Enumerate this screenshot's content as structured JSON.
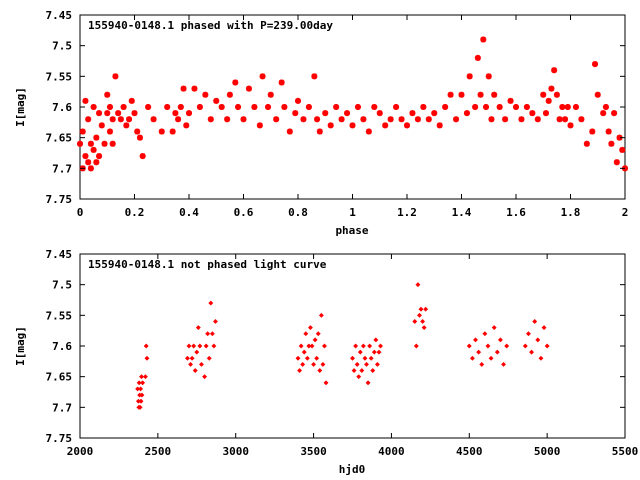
{
  "colors": {
    "points": "#ff0000",
    "axes": "#000000",
    "background": "#ffffff"
  },
  "chart_data": [
    {
      "type": "scatter",
      "title": "155940-0148.1 phased with P=239.00day",
      "xlabel": "phase",
      "ylabel": "I[mag]",
      "xlim": [
        0,
        2
      ],
      "ylim": [
        7.75,
        7.45
      ],
      "y_inverted": true,
      "xticks": [
        0,
        0.2,
        0.4,
        0.6,
        0.8,
        1,
        1.2,
        1.4,
        1.6,
        1.8,
        2
      ],
      "xtick_labels": [
        "0",
        "0.2",
        "0.4",
        "0.6",
        "0.8",
        "1",
        "1.2",
        "1.4",
        "1.6",
        "1.8",
        "2"
      ],
      "yticks": [
        7.45,
        7.5,
        7.55,
        7.6,
        7.65,
        7.7,
        7.75
      ],
      "ytick_labels": [
        "7.45",
        "7.5",
        "7.55",
        "7.6",
        "7.65",
        "7.7",
        "7.75"
      ],
      "grid": false,
      "marker": "star",
      "series": [
        {
          "points": [
            [
              0.0,
              7.66
            ],
            [
              0.01,
              7.7
            ],
            [
              0.01,
              7.64
            ],
            [
              0.02,
              7.68
            ],
            [
              0.02,
              7.59
            ],
            [
              0.03,
              7.69
            ],
            [
              0.03,
              7.62
            ],
            [
              0.04,
              7.66
            ],
            [
              0.04,
              7.7
            ],
            [
              0.05,
              7.67
            ],
            [
              0.05,
              7.6
            ],
            [
              0.06,
              7.65
            ],
            [
              0.06,
              7.69
            ],
            [
              0.07,
              7.68
            ],
            [
              0.07,
              7.61
            ],
            [
              0.08,
              7.63
            ],
            [
              0.09,
              7.66
            ],
            [
              0.1,
              7.61
            ],
            [
              0.1,
              7.58
            ],
            [
              0.11,
              7.64
            ],
            [
              0.11,
              7.6
            ],
            [
              0.12,
              7.62
            ],
            [
              0.12,
              7.66
            ],
            [
              0.13,
              7.55
            ],
            [
              0.14,
              7.61
            ],
            [
              0.15,
              7.62
            ],
            [
              0.16,
              7.6
            ],
            [
              0.17,
              7.63
            ],
            [
              0.18,
              7.62
            ],
            [
              0.19,
              7.59
            ],
            [
              0.2,
              7.61
            ],
            [
              0.21,
              7.64
            ],
            [
              0.22,
              7.65
            ],
            [
              0.23,
              7.68
            ],
            [
              0.25,
              7.6
            ],
            [
              0.27,
              7.62
            ],
            [
              0.3,
              7.64
            ],
            [
              0.32,
              7.6
            ],
            [
              0.34,
              7.64
            ],
            [
              0.35,
              7.61
            ],
            [
              0.36,
              7.62
            ],
            [
              0.37,
              7.6
            ],
            [
              0.38,
              7.57
            ],
            [
              0.39,
              7.63
            ],
            [
              0.4,
              7.61
            ],
            [
              0.42,
              7.57
            ],
            [
              0.44,
              7.6
            ],
            [
              0.46,
              7.58
            ],
            [
              0.48,
              7.62
            ],
            [
              0.5,
              7.59
            ],
            [
              0.52,
              7.6
            ],
            [
              0.54,
              7.62
            ],
            [
              0.55,
              7.58
            ],
            [
              0.57,
              7.56
            ],
            [
              0.58,
              7.6
            ],
            [
              0.6,
              7.62
            ],
            [
              0.62,
              7.57
            ],
            [
              0.64,
              7.6
            ],
            [
              0.66,
              7.63
            ],
            [
              0.67,
              7.55
            ],
            [
              0.69,
              7.6
            ],
            [
              0.7,
              7.58
            ],
            [
              0.72,
              7.62
            ],
            [
              0.74,
              7.56
            ],
            [
              0.75,
              7.6
            ],
            [
              0.77,
              7.64
            ],
            [
              0.79,
              7.61
            ],
            [
              0.8,
              7.59
            ],
            [
              0.82,
              7.62
            ],
            [
              0.84,
              7.6
            ],
            [
              0.86,
              7.55
            ],
            [
              0.87,
              7.62
            ],
            [
              0.88,
              7.64
            ],
            [
              0.9,
              7.61
            ],
            [
              0.92,
              7.63
            ],
            [
              0.94,
              7.6
            ],
            [
              0.96,
              7.62
            ],
            [
              0.98,
              7.61
            ],
            [
              1.0,
              7.63
            ],
            [
              1.02,
              7.6
            ],
            [
              1.04,
              7.62
            ],
            [
              1.06,
              7.64
            ],
            [
              1.08,
              7.6
            ],
            [
              1.1,
              7.61
            ],
            [
              1.12,
              7.63
            ],
            [
              1.14,
              7.62
            ],
            [
              1.16,
              7.6
            ],
            [
              1.18,
              7.62
            ],
            [
              1.2,
              7.63
            ],
            [
              1.22,
              7.61
            ],
            [
              1.24,
              7.62
            ],
            [
              1.26,
              7.6
            ],
            [
              1.28,
              7.62
            ],
            [
              1.3,
              7.61
            ],
            [
              1.32,
              7.63
            ],
            [
              1.34,
              7.6
            ],
            [
              1.36,
              7.58
            ],
            [
              1.38,
              7.62
            ],
            [
              1.4,
              7.58
            ],
            [
              1.42,
              7.61
            ],
            [
              1.43,
              7.55
            ],
            [
              1.45,
              7.6
            ],
            [
              1.46,
              7.52
            ],
            [
              1.47,
              7.58
            ],
            [
              1.48,
              7.49
            ],
            [
              1.49,
              7.6
            ],
            [
              1.5,
              7.55
            ],
            [
              1.51,
              7.62
            ],
            [
              1.52,
              7.58
            ],
            [
              1.54,
              7.6
            ],
            [
              1.56,
              7.62
            ],
            [
              1.58,
              7.59
            ],
            [
              1.6,
              7.6
            ],
            [
              1.62,
              7.62
            ],
            [
              1.64,
              7.6
            ],
            [
              1.66,
              7.61
            ],
            [
              1.68,
              7.62
            ],
            [
              1.7,
              7.58
            ],
            [
              1.71,
              7.61
            ],
            [
              1.72,
              7.59
            ],
            [
              1.73,
              7.57
            ],
            [
              1.74,
              7.54
            ],
            [
              1.75,
              7.58
            ],
            [
              1.76,
              7.62
            ],
            [
              1.77,
              7.6
            ],
            [
              1.78,
              7.62
            ],
            [
              1.79,
              7.6
            ],
            [
              1.8,
              7.63
            ],
            [
              1.82,
              7.6
            ],
            [
              1.84,
              7.62
            ],
            [
              1.86,
              7.66
            ],
            [
              1.88,
              7.64
            ],
            [
              1.89,
              7.53
            ],
            [
              1.9,
              7.58
            ],
            [
              1.92,
              7.61
            ],
            [
              1.93,
              7.6
            ],
            [
              1.94,
              7.64
            ],
            [
              1.95,
              7.66
            ],
            [
              1.96,
              7.61
            ],
            [
              1.97,
              7.69
            ],
            [
              1.98,
              7.65
            ],
            [
              1.99,
              7.67
            ],
            [
              2.0,
              7.7
            ]
          ]
        }
      ]
    },
    {
      "type": "scatter",
      "title": "155940-0148.1 not phased light curve",
      "xlabel": "hjd0",
      "ylabel": "I[mag]",
      "xlim": [
        2000,
        5500
      ],
      "ylim": [
        7.75,
        7.45
      ],
      "y_inverted": true,
      "xticks": [
        2000,
        2500,
        3000,
        3500,
        4000,
        4500,
        5000,
        5500
      ],
      "xtick_labels": [
        "2000",
        "2500",
        "3000",
        "3500",
        "4000",
        "4500",
        "5000",
        "5500"
      ],
      "yticks": [
        7.45,
        7.5,
        7.55,
        7.6,
        7.65,
        7.7,
        7.75
      ],
      "ytick_labels": [
        "7.45",
        "7.5",
        "7.55",
        "7.6",
        "7.65",
        "7.7",
        "7.75"
      ],
      "grid": false,
      "marker": "diamond",
      "series": [
        {
          "points": [
            [
              2370,
              7.67
            ],
            [
              2375,
              7.69
            ],
            [
              2378,
              7.7
            ],
            [
              2380,
              7.66
            ],
            [
              2383,
              7.68
            ],
            [
              2386,
              7.7
            ],
            [
              2389,
              7.67
            ],
            [
              2392,
              7.69
            ],
            [
              2395,
              7.65
            ],
            [
              2398,
              7.68
            ],
            [
              2402,
              7.66
            ],
            [
              2420,
              7.65
            ],
            [
              2425,
              7.6
            ],
            [
              2430,
              7.62
            ],
            [
              2690,
              7.62
            ],
            [
              2700,
              7.6
            ],
            [
              2710,
              7.63
            ],
            [
              2720,
              7.62
            ],
            [
              2730,
              7.6
            ],
            [
              2740,
              7.64
            ],
            [
              2750,
              7.61
            ],
            [
              2760,
              7.57
            ],
            [
              2770,
              7.6
            ],
            [
              2780,
              7.63
            ],
            [
              2800,
              7.65
            ],
            [
              2810,
              7.6
            ],
            [
              2820,
              7.58
            ],
            [
              2830,
              7.62
            ],
            [
              2840,
              7.53
            ],
            [
              2850,
              7.58
            ],
            [
              2860,
              7.6
            ],
            [
              2870,
              7.56
            ],
            [
              3400,
              7.62
            ],
            [
              3410,
              7.64
            ],
            [
              3420,
              7.6
            ],
            [
              3430,
              7.63
            ],
            [
              3440,
              7.61
            ],
            [
              3450,
              7.58
            ],
            [
              3460,
              7.62
            ],
            [
              3470,
              7.6
            ],
            [
              3480,
              7.57
            ],
            [
              3490,
              7.6
            ],
            [
              3500,
              7.63
            ],
            [
              3510,
              7.59
            ],
            [
              3520,
              7.62
            ],
            [
              3530,
              7.58
            ],
            [
              3540,
              7.64
            ],
            [
              3550,
              7.55
            ],
            [
              3560,
              7.63
            ],
            [
              3570,
              7.6
            ],
            [
              3580,
              7.66
            ],
            [
              3750,
              7.62
            ],
            [
              3760,
              7.64
            ],
            [
              3770,
              7.6
            ],
            [
              3780,
              7.63
            ],
            [
              3790,
              7.65
            ],
            [
              3800,
              7.61
            ],
            [
              3810,
              7.64
            ],
            [
              3820,
              7.6
            ],
            [
              3830,
              7.62
            ],
            [
              3840,
              7.63
            ],
            [
              3850,
              7.66
            ],
            [
              3860,
              7.6
            ],
            [
              3870,
              7.62
            ],
            [
              3880,
              7.64
            ],
            [
              3890,
              7.61
            ],
            [
              3900,
              7.59
            ],
            [
              3910,
              7.63
            ],
            [
              3920,
              7.61
            ],
            [
              3930,
              7.6
            ],
            [
              4150,
              7.56
            ],
            [
              4160,
              7.6
            ],
            [
              4170,
              7.5
            ],
            [
              4180,
              7.55
            ],
            [
              4190,
              7.54
            ],
            [
              4200,
              7.56
            ],
            [
              4210,
              7.57
            ],
            [
              4220,
              7.54
            ],
            [
              4500,
              7.6
            ],
            [
              4520,
              7.62
            ],
            [
              4540,
              7.59
            ],
            [
              4560,
              7.61
            ],
            [
              4580,
              7.63
            ],
            [
              4600,
              7.58
            ],
            [
              4620,
              7.6
            ],
            [
              4640,
              7.62
            ],
            [
              4660,
              7.57
            ],
            [
              4680,
              7.61
            ],
            [
              4700,
              7.59
            ],
            [
              4720,
              7.63
            ],
            [
              4740,
              7.6
            ],
            [
              4860,
              7.6
            ],
            [
              4880,
              7.58
            ],
            [
              4900,
              7.61
            ],
            [
              4920,
              7.56
            ],
            [
              4940,
              7.59
            ],
            [
              4960,
              7.62
            ],
            [
              4980,
              7.57
            ],
            [
              5000,
              7.6
            ]
          ]
        }
      ]
    }
  ]
}
